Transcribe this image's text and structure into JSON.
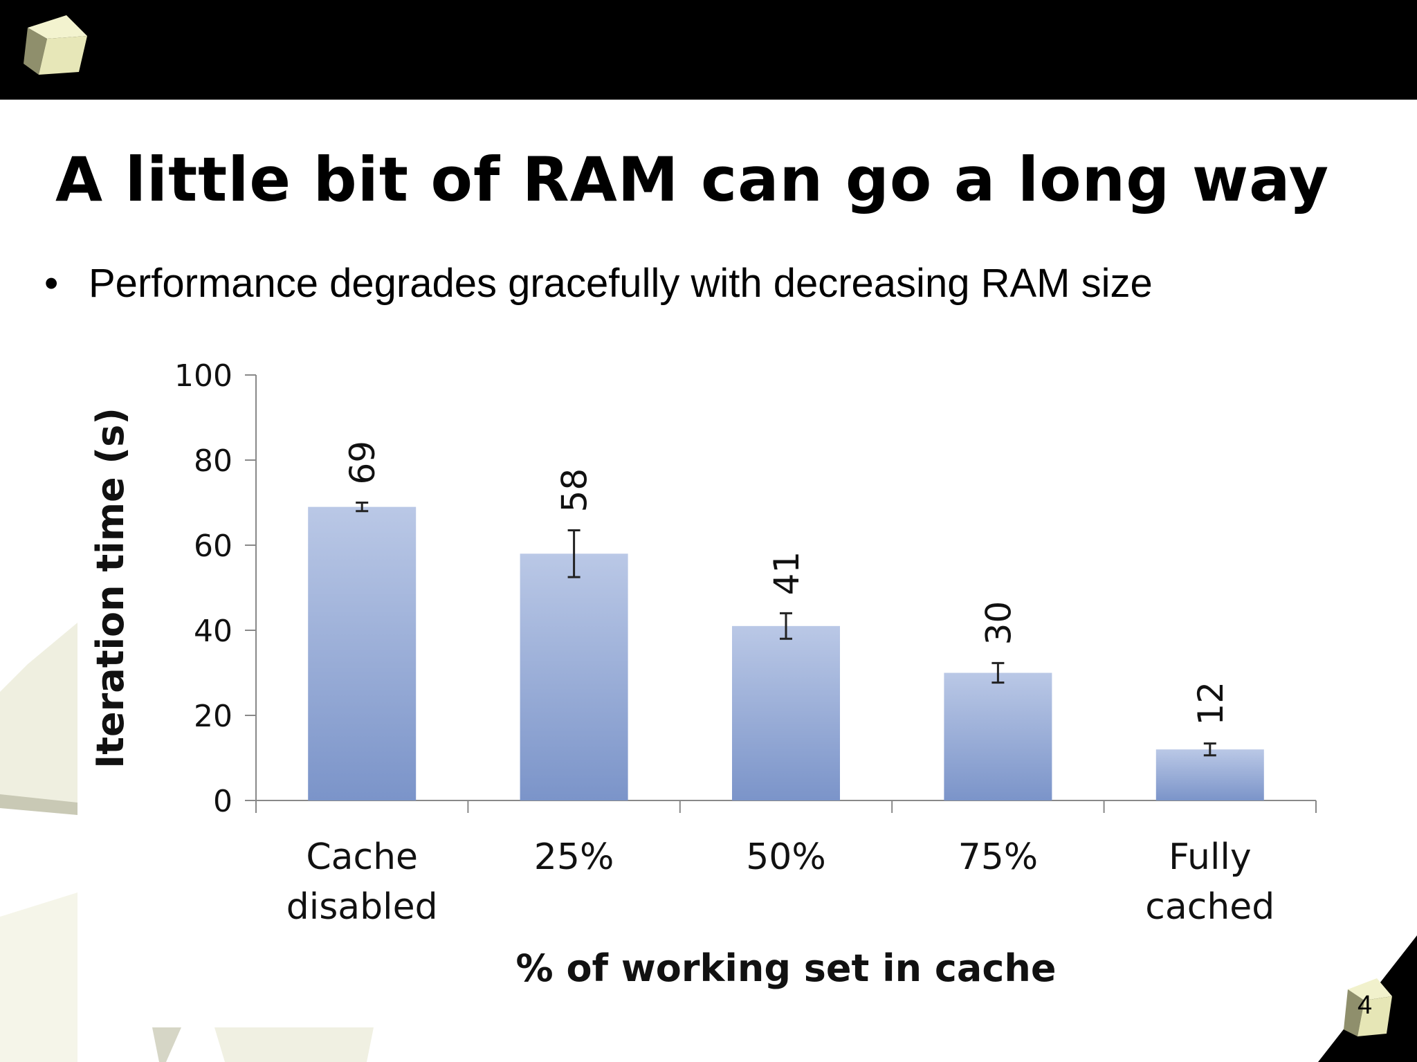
{
  "slide": {
    "title": "A little bit of RAM can go a long way",
    "bullet_symbol": "•",
    "bullet": "Performance degrades gracefully with decreasing RAM size",
    "page_number": "4"
  },
  "chart_data": {
    "type": "bar",
    "categories": [
      [
        "Cache",
        "disabled"
      ],
      [
        "25%"
      ],
      [
        "50%"
      ],
      [
        "75%"
      ],
      [
        "Fully",
        "cached"
      ]
    ],
    "values": [
      69,
      58,
      41,
      30,
      12
    ],
    "data_labels": [
      "69",
      "58",
      "41",
      "30",
      "12"
    ],
    "error": [
      1,
      5.5,
      3,
      2.3,
      1.4
    ],
    "title": "",
    "xlabel": "% of working set in cache",
    "ylabel": "Iteration time (s)",
    "ylim": [
      0,
      100
    ],
    "yticks": [
      0,
      20,
      40,
      60,
      80,
      100
    ],
    "ytick_labels": [
      "0",
      "20",
      "40",
      "60",
      "80",
      "100"
    ],
    "grid": false,
    "bar_color_top": "#bac8e6",
    "bar_color_bottom": "#7b94c9"
  }
}
